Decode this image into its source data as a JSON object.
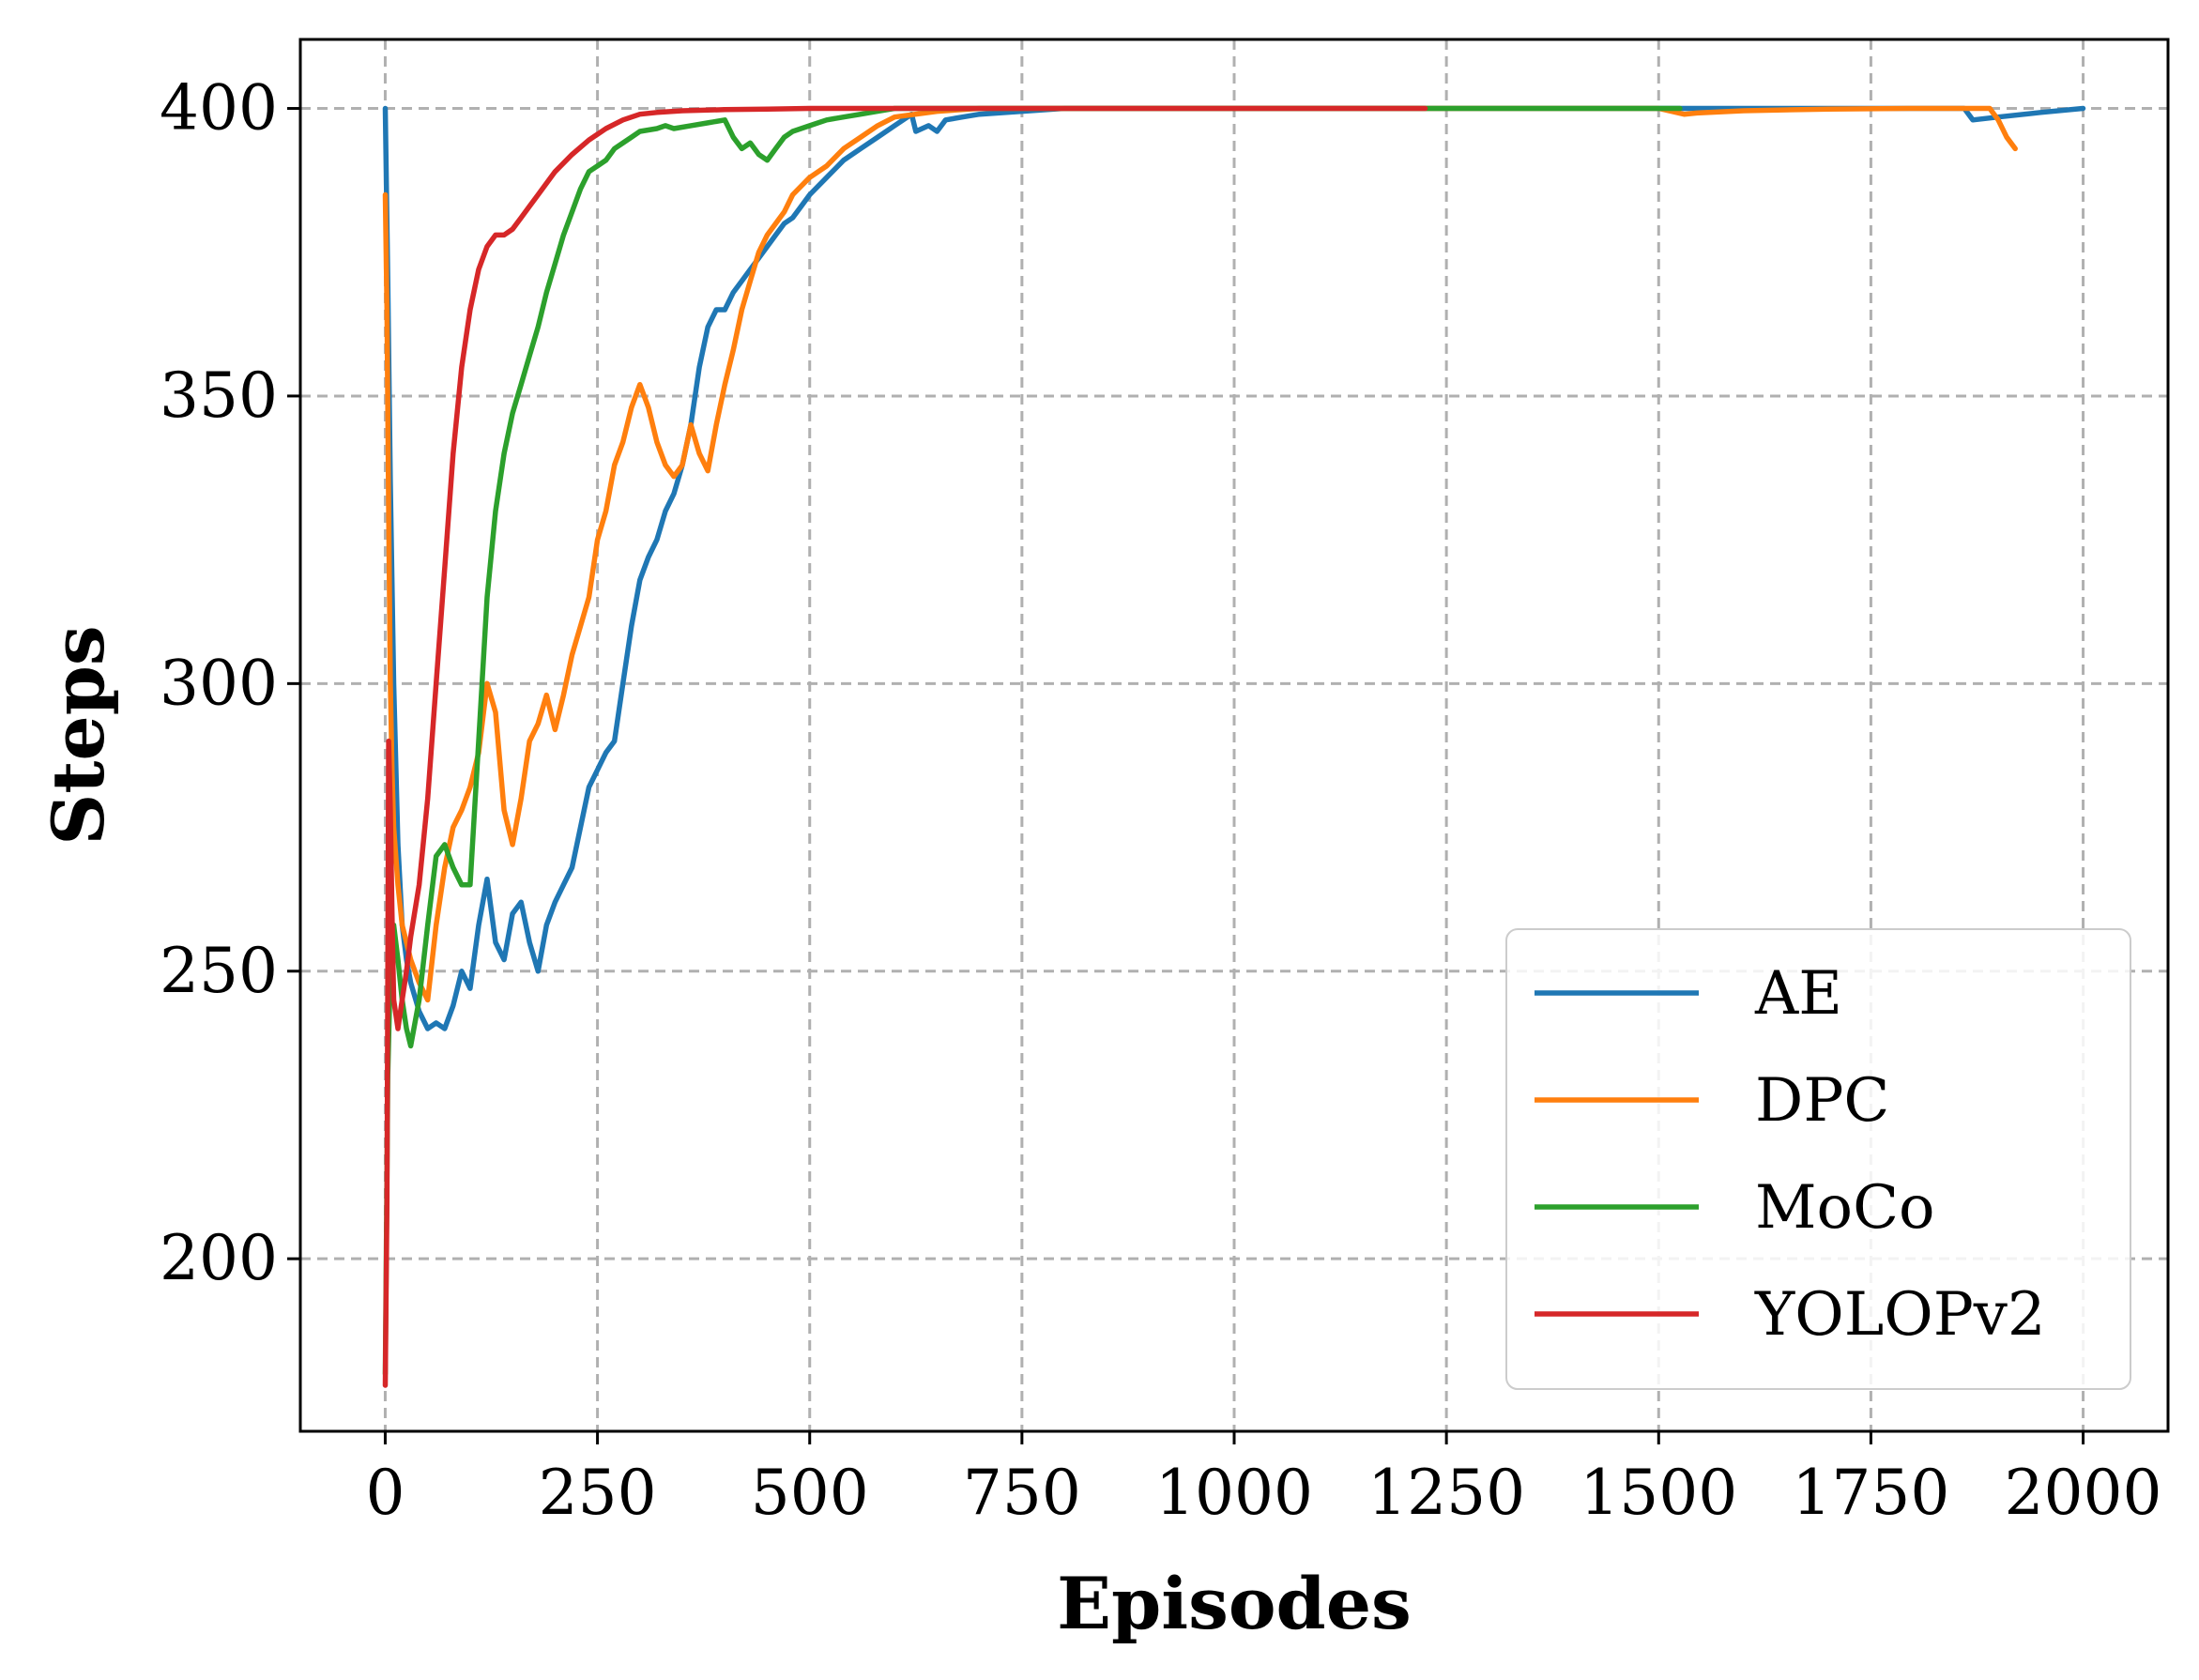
{
  "chart_data": {
    "type": "line",
    "title": "",
    "xlabel": "Episodes",
    "ylabel": "Steps",
    "xlim": [
      -100,
      2100
    ],
    "ylim": [
      170,
      412
    ],
    "xticks": [
      0,
      250,
      500,
      750,
      1000,
      1250,
      1500,
      1750,
      2000
    ],
    "yticks": [
      200,
      250,
      300,
      350,
      400
    ],
    "xtick_labels": [
      "0",
      "250",
      "500",
      "750",
      "1000",
      "1250",
      "1500",
      "1750",
      "2000"
    ],
    "ytick_labels": [
      "200",
      "250",
      "300",
      "350",
      "400"
    ],
    "grid": true,
    "legend_position": "lower-right",
    "series": [
      {
        "name": "AE",
        "color": "#1f77b4",
        "x": [
          0,
          3,
          6,
          10,
          15,
          20,
          25,
          30,
          40,
          50,
          60,
          70,
          80,
          90,
          100,
          110,
          120,
          130,
          140,
          150,
          160,
          170,
          180,
          190,
          200,
          210,
          220,
          230,
          240,
          250,
          260,
          270,
          280,
          290,
          300,
          310,
          320,
          330,
          340,
          350,
          360,
          370,
          380,
          390,
          400,
          410,
          420,
          430,
          440,
          450,
          460,
          470,
          480,
          490,
          500,
          520,
          540,
          560,
          580,
          600,
          620,
          625,
          640,
          650,
          660,
          680,
          700,
          750,
          800,
          900,
          1000,
          1250,
          1500,
          1750,
          1860,
          1870,
          1900,
          1950,
          2000
        ],
        "values": [
          400,
          370,
          335,
          300,
          272,
          258,
          252,
          248,
          243,
          240,
          241,
          240,
          244,
          250,
          247,
          258,
          266,
          255,
          252,
          260,
          262,
          255,
          250,
          258,
          262,
          265,
          268,
          275,
          282,
          285,
          288,
          290,
          300,
          310,
          318,
          322,
          325,
          330,
          333,
          338,
          345,
          355,
          362,
          365,
          365,
          368,
          370,
          372,
          374,
          376,
          378,
          380,
          381,
          383,
          385,
          388,
          391,
          393,
          395,
          397,
          399,
          396,
          397,
          396,
          398,
          398.5,
          399,
          399.5,
          400,
          400,
          400,
          400,
          400,
          400,
          400,
          398,
          398.5,
          399.3,
          400
        ]
      },
      {
        "name": "DPC",
        "color": "#ff7f0e",
        "x": [
          0,
          2,
          4,
          6,
          8,
          10,
          15,
          20,
          25,
          30,
          40,
          50,
          60,
          70,
          80,
          90,
          100,
          110,
          120,
          130,
          140,
          150,
          160,
          170,
          180,
          190,
          200,
          210,
          220,
          230,
          240,
          250,
          260,
          270,
          280,
          290,
          300,
          310,
          320,
          330,
          340,
          350,
          360,
          370,
          380,
          390,
          400,
          410,
          420,
          430,
          440,
          450,
          460,
          470,
          480,
          500,
          520,
          540,
          560,
          580,
          600,
          650,
          700,
          800,
          1000,
          1250,
          1500,
          1530,
          1545,
          1600,
          1700,
          1800,
          1890,
          1900,
          1910,
          1920
        ],
        "values": [
          385,
          365,
          330,
          300,
          285,
          275,
          265,
          258,
          255,
          252,
          248,
          245,
          258,
          268,
          275,
          278,
          282,
          288,
          300,
          295,
          278,
          272,
          280,
          290,
          293,
          298,
          292,
          298,
          305,
          310,
          315,
          325,
          330,
          338,
          342,
          348,
          352,
          348,
          342,
          338,
          336,
          338,
          345,
          340,
          337,
          345,
          352,
          358,
          365,
          370,
          375,
          378,
          380,
          382,
          385,
          388,
          390,
          393,
          395,
          397,
          398.5,
          399.5,
          400,
          400,
          400,
          400,
          400,
          399,
          399.2,
          399.6,
          399.9,
          400,
          400,
          398,
          395,
          393
        ]
      },
      {
        "name": "MoCo",
        "color": "#2ca02c",
        "x": [
          0,
          3,
          6,
          10,
          15,
          20,
          25,
          30,
          40,
          50,
          60,
          70,
          80,
          90,
          100,
          110,
          120,
          130,
          140,
          150,
          160,
          170,
          180,
          190,
          200,
          210,
          220,
          230,
          240,
          250,
          260,
          270,
          280,
          290,
          300,
          320,
          330,
          340,
          360,
          380,
          400,
          410,
          420,
          430,
          440,
          450,
          460,
          470,
          480,
          500,
          520,
          540,
          560,
          580,
          600,
          650,
          700,
          800,
          1000,
          1250,
          1500,
          1525
        ],
        "values": [
          180,
          232,
          250,
          258,
          252,
          245,
          240,
          237,
          245,
          258,
          270,
          272,
          268,
          265,
          265,
          290,
          315,
          330,
          340,
          347,
          352,
          357,
          362,
          368,
          373,
          378,
          382,
          386,
          389,
          390,
          391,
          393,
          394,
          395,
          396,
          396.5,
          397,
          396.5,
          397,
          397.5,
          398,
          395,
          393,
          394,
          392,
          391,
          393,
          395,
          396,
          397,
          398,
          398.5,
          399,
          399.5,
          400,
          400,
          400,
          400,
          400,
          400,
          400,
          400
        ]
      },
      {
        "name": "YOLOPv2",
        "color": "#d62728",
        "x": [
          0,
          2,
          4,
          6,
          8,
          10,
          15,
          20,
          25,
          30,
          40,
          50,
          60,
          70,
          80,
          90,
          100,
          110,
          120,
          130,
          140,
          150,
          160,
          170,
          180,
          190,
          200,
          220,
          240,
          260,
          280,
          300,
          320,
          350,
          400,
          450,
          500,
          600,
          700,
          800,
          1000,
          1225
        ],
        "values": [
          178,
          210,
          290,
          278,
          260,
          245,
          240,
          245,
          250,
          256,
          265,
          280,
          300,
          320,
          340,
          355,
          365,
          372,
          376,
          378,
          378,
          379,
          381,
          383,
          385,
          387,
          389,
          392,
          394.5,
          396.5,
          398,
          399,
          399.3,
          399.6,
          399.8,
          399.9,
          400,
          400,
          400,
          400,
          400,
          400
        ]
      }
    ]
  }
}
